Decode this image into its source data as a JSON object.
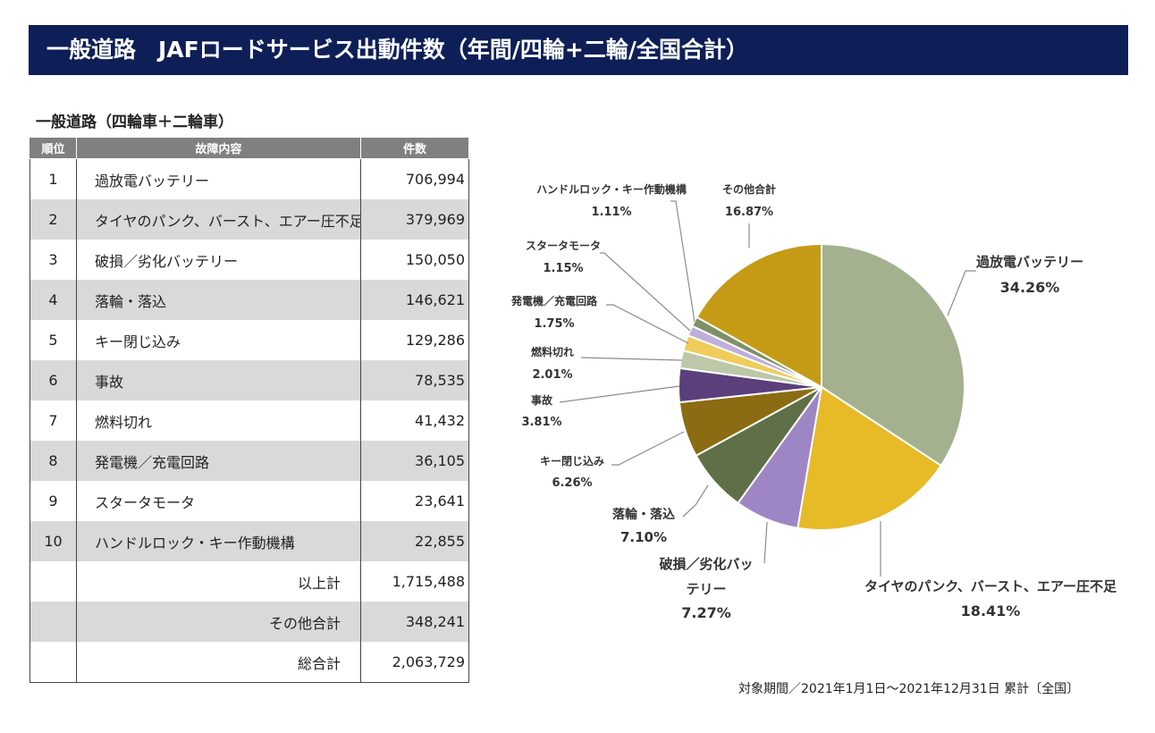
{
  "header": {
    "title": "一般道路　JAFロードサービス出動件数（年間/四輪+二輪/全国合計）"
  },
  "table": {
    "title": "一般道路（四輪車＋二輪車）",
    "columns": [
      "順位",
      "故障内容",
      "件数"
    ],
    "rows": [
      {
        "rank": "1",
        "item": "過放電バッテリー",
        "count": "706,994"
      },
      {
        "rank": "2",
        "item": "タイヤのパンク、バースト、エアー圧不足",
        "count": "379,969"
      },
      {
        "rank": "3",
        "item": "破損／劣化バッテリー",
        "count": "150,050"
      },
      {
        "rank": "4",
        "item": "落輪・落込",
        "count": "146,621"
      },
      {
        "rank": "5",
        "item": "キー閉じ込み",
        "count": "129,286"
      },
      {
        "rank": "6",
        "item": "事故",
        "count": "78,535"
      },
      {
        "rank": "7",
        "item": "燃料切れ",
        "count": "41,432"
      },
      {
        "rank": "8",
        "item": "発電機／充電回路",
        "count": "36,105"
      },
      {
        "rank": "9",
        "item": "スタータモータ",
        "count": "23,641"
      },
      {
        "rank": "10",
        "item": "ハンドルロック・キー作動機構",
        "count": "22,855"
      }
    ],
    "totals": [
      {
        "label": "以上計",
        "count": "1,715,488"
      },
      {
        "label": "その他合計",
        "count": "348,241"
      },
      {
        "label": "総合計",
        "count": "2,063,729"
      }
    ]
  },
  "chart_data": {
    "type": "pie",
    "start": "12 o'clock, clockwise",
    "slices": [
      {
        "label": "過放電バッテリー",
        "value": 34.26,
        "value_label": "34.26%",
        "color": "#a3b18f"
      },
      {
        "label": "タイヤのパンク、バースト、エアー圧不足",
        "value": 18.41,
        "value_label": "18.41%",
        "color": "#e7ba28"
      },
      {
        "label": "破損／劣化バッテリー",
        "value": 7.27,
        "value_label": "7.27%",
        "color": "#9e86c4"
      },
      {
        "label": "落輪・落込",
        "value": 7.1,
        "value_label": "7.10%",
        "color": "#5f6f47"
      },
      {
        "label": "キー閉じ込み",
        "value": 6.26,
        "value_label": "6.26%",
        "color": "#8c6c12"
      },
      {
        "label": "事故",
        "value": 3.81,
        "value_label": "3.81%",
        "color": "#5b3f7a"
      },
      {
        "label": "燃料切れ",
        "value": 2.01,
        "value_label": "2.01%",
        "color": "#bdc8a8"
      },
      {
        "label": "発電機／充電回路",
        "value": 1.75,
        "value_label": "1.75%",
        "color": "#f0cc5a"
      },
      {
        "label": "スタータモータ",
        "value": 1.15,
        "value_label": "1.15%",
        "color": "#bfaedb"
      },
      {
        "label": "ハンドルロック・キー作動機構",
        "value": 1.11,
        "value_label": "1.11%",
        "color": "#7e9068"
      },
      {
        "label": "その他合計",
        "value": 16.87,
        "value_label": "16.87%",
        "color": "#c59b15"
      }
    ]
  },
  "footnote": "対象期間／2021年1月1日～2021年12月31日 累計〔全国〕"
}
